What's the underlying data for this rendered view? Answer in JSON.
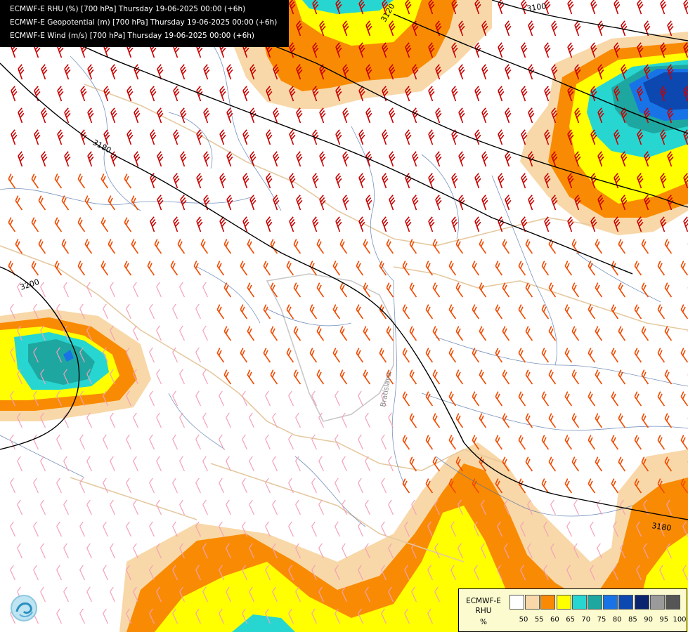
{
  "header": {
    "line1": "ECMWF-E RHU (%) [700 hPa] Thursday 19-06-2025 00:00 (+6h)",
    "line2": "ECMWF-E Geopotential (m) [700 hPa] Thursday 19-06-2025 00:00 (+6h)",
    "line3": "ECMWF-E Wind (m/s) [700 hPa] Thursday 19-06-2025 00:00 (+6h)"
  },
  "contours": {
    "c3100": "3100",
    "c3120": "3120",
    "c3180a": "3180",
    "c3200": "3200",
    "c3180b": "3180"
  },
  "map_labels": {
    "city": "Bratislava"
  },
  "legend": {
    "title_line1": "ECMWF-E",
    "title_line2": "RHU",
    "unit": "%",
    "levels": [
      {
        "value": "50",
        "color": "#ffffff"
      },
      {
        "value": "55",
        "color": "#f8d8a8"
      },
      {
        "value": "60",
        "color": "#f98b04"
      },
      {
        "value": "65",
        "color": "#ffff00"
      },
      {
        "value": "70",
        "color": "#27d6d0"
      },
      {
        "value": "75",
        "color": "#1ea7a0"
      },
      {
        "value": "80",
        "color": "#1874e6"
      },
      {
        "value": "85",
        "color": "#0c48b0"
      },
      {
        "value": "90",
        "color": "#0a2470"
      },
      {
        "value": "95",
        "color": "#9a9a9a"
      },
      {
        "value": "100",
        "color": "#555555"
      }
    ]
  },
  "colors": {
    "wind_strong": "#c80000",
    "wind_medium": "#f04a00",
    "wind_weak": "#f4a0b8",
    "border": "#e5c9a0",
    "river": "#4a6ea8",
    "contour": "#000000"
  }
}
